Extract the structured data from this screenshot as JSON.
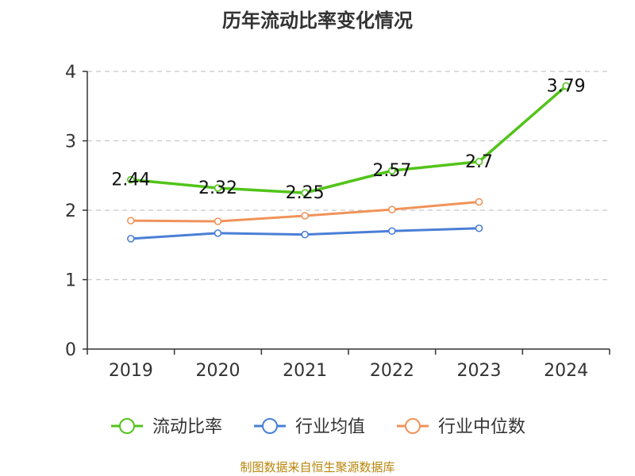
{
  "chart_data": {
    "type": "line",
    "title": "历年流动比率变化情况",
    "categories": [
      "2019",
      "2020",
      "2021",
      "2022",
      "2023",
      "2024"
    ],
    "ylim": [
      0,
      4
    ],
    "yticks": [
      0,
      1,
      2,
      3,
      4
    ],
    "grid": true,
    "legend_position": "bottom",
    "series": [
      {
        "name": "流动比率",
        "color": "#52c41a",
        "values": [
          2.44,
          2.32,
          2.25,
          2.57,
          2.7,
          3.79
        ],
        "labels": [
          "2.44",
          "2.32",
          "2.25",
          "2.57",
          "2.7",
          "3.79"
        ]
      },
      {
        "name": "行业均值",
        "color": "#4a7fd6",
        "values": [
          1.59,
          1.67,
          1.65,
          1.7,
          1.74,
          null
        ]
      },
      {
        "name": "行业中位数",
        "color": "#f0935a",
        "values": [
          1.85,
          1.84,
          1.92,
          2.01,
          2.12,
          null
        ]
      }
    ]
  },
  "source": "制图数据来自恒生聚源数据库"
}
